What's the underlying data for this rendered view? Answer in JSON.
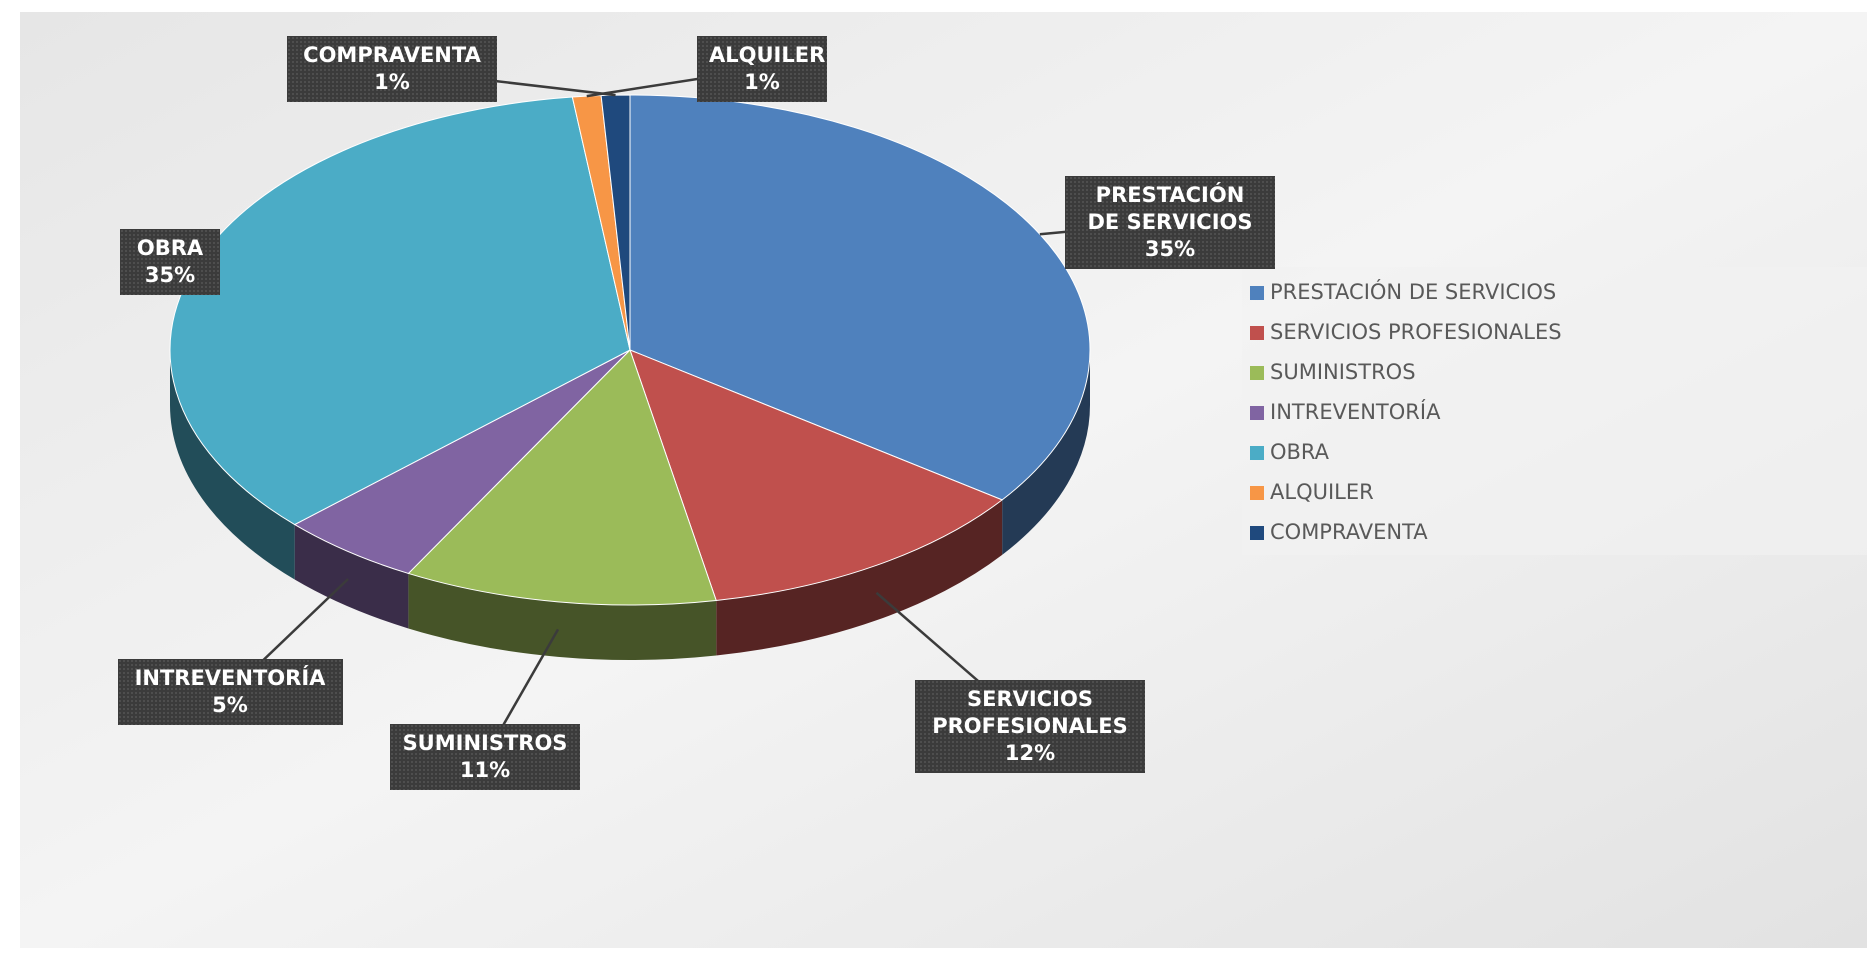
{
  "chart_data": {
    "type": "pie",
    "categories": [
      "PRESTACIÓN DE SERVICIOS",
      "SERVICIOS PROFESIONALES",
      "SUMINISTROS",
      "INTREVENTORÍA",
      "OBRA",
      "ALQUILER",
      "COMPRAVENTA"
    ],
    "values": [
      35,
      12,
      11,
      5,
      35,
      1,
      1
    ],
    "value_labels": [
      "35%",
      "12%",
      "11%",
      "5%",
      "35%",
      "1%",
      "1%"
    ],
    "colors": [
      "#4f81bd",
      "#c0504d",
      "#9bbb59",
      "#8064a2",
      "#4bacc6",
      "#f79646",
      "#1f497d"
    ],
    "legend": "right"
  }
}
